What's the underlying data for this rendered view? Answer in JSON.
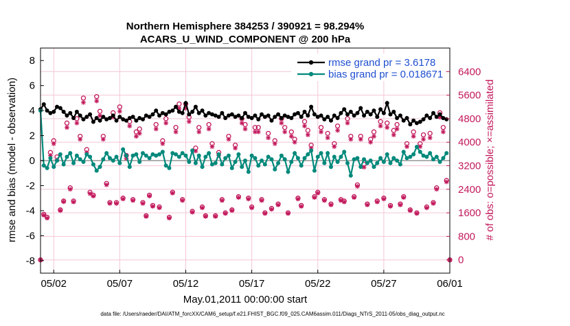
{
  "chart_data": {
    "type": "line",
    "title": [
      "Northern Hemisphere 384253 / 390921 = 98.294%",
      "ACARS_U_WIND_COMPONENT @ 200 hPa"
    ],
    "xlabel": "May.01,2011 00:00:00 start",
    "ylabel_left": "rmse and bias (model - observation)",
    "ylabel_right": "# of obs: o=possible; ×=assimilated",
    "footnote": "data file: /Users/raeder/DAI/ATM_forcXX/CAM6_setup/f.e21.FHIST_BGC.f09_025.CAM6assim.011/Diags_NTrS_2011-05/obs_diag_output.nc",
    "xlim": [
      0,
      31
    ],
    "ylim_left": [
      -9,
      9
    ],
    "ylim_right": [
      -450,
      7200
    ],
    "xticks": [
      {
        "v": 1,
        "label": "05/02"
      },
      {
        "v": 6,
        "label": "05/07"
      },
      {
        "v": 11,
        "label": "05/12"
      },
      {
        "v": 16,
        "label": "05/17"
      },
      {
        "v": 21,
        "label": "05/22"
      },
      {
        "v": 26,
        "label": "05/27"
      },
      {
        "v": 31,
        "label": "06/01"
      }
    ],
    "yticks_left": [
      -8,
      -6,
      -4,
      -2,
      0,
      2,
      4,
      6,
      8
    ],
    "yticks_right": [
      0,
      800,
      1600,
      2400,
      3200,
      4000,
      4800,
      5600,
      6400
    ],
    "grid": true,
    "zero_line": true,
    "legend_position": "top-right",
    "colors": {
      "rmse": "#000000",
      "bias": "#00897b",
      "obs": "#c2185b",
      "grid": "#f4c6d6",
      "zero": "#b0b0b0"
    },
    "series": [
      {
        "name": "rmse grand pr = 3.6178",
        "axis": "left",
        "x": [
          0.0,
          0.25,
          0.5,
          0.75,
          1.0,
          1.25,
          1.5,
          1.75,
          2.0,
          2.25,
          2.5,
          2.75,
          3.0,
          3.25,
          3.5,
          3.75,
          4.0,
          4.25,
          4.5,
          4.75,
          5.0,
          5.25,
          5.5,
          5.75,
          6.0,
          6.25,
          6.5,
          6.75,
          7.0,
          7.25,
          7.5,
          7.75,
          8.0,
          8.25,
          8.5,
          8.75,
          9.0,
          9.25,
          9.5,
          9.75,
          10.0,
          10.25,
          10.5,
          10.75,
          11.0,
          11.25,
          11.5,
          11.75,
          12.0,
          12.25,
          12.5,
          12.75,
          13.0,
          13.25,
          13.5,
          13.75,
          14.0,
          14.25,
          14.5,
          14.75,
          15.0,
          15.25,
          15.5,
          15.75,
          16.0,
          16.25,
          16.5,
          16.75,
          17.0,
          17.25,
          17.5,
          17.75,
          18.0,
          18.25,
          18.5,
          18.75,
          19.0,
          19.25,
          19.5,
          19.75,
          20.0,
          20.25,
          20.5,
          20.75,
          21.0,
          21.25,
          21.5,
          21.75,
          22.0,
          22.25,
          22.5,
          22.75,
          23.0,
          23.25,
          23.5,
          23.75,
          24.0,
          24.25,
          24.5,
          24.75,
          25.0,
          25.25,
          25.5,
          25.75,
          26.0,
          26.25,
          26.5,
          26.75,
          27.0,
          27.25,
          27.5,
          27.75,
          28.0,
          28.25,
          28.5,
          28.75,
          29.0,
          29.25,
          29.5,
          29.75,
          30.0,
          30.25,
          30.5,
          30.75
        ],
        "values": [
          4.1,
          4.5,
          4.0,
          3.8,
          3.9,
          4.3,
          4.2,
          3.9,
          3.6,
          3.8,
          3.4,
          3.9,
          3.6,
          3.3,
          3.5,
          3.7,
          3.1,
          3.4,
          3.2,
          3.5,
          3.3,
          3.4,
          3.6,
          3.2,
          3.5,
          3.3,
          3.2,
          3.4,
          3.5,
          3.2,
          3.4,
          3.3,
          3.6,
          3.5,
          3.7,
          4.0,
          3.6,
          3.8,
          3.7,
          3.9,
          4.0,
          4.3,
          3.9,
          3.8,
          4.6,
          3.7,
          3.9,
          4.3,
          3.8,
          4.0,
          3.6,
          3.8,
          3.7,
          3.6,
          3.5,
          3.8,
          3.4,
          3.6,
          3.7,
          3.5,
          3.6,
          3.4,
          3.8,
          3.5,
          3.4,
          3.6,
          3.3,
          3.7,
          3.5,
          3.6,
          3.2,
          3.5,
          3.7,
          3.4,
          3.6,
          3.5,
          3.4,
          3.7,
          3.8,
          3.5,
          3.9,
          3.6,
          4.3,
          3.7,
          3.5,
          3.6,
          3.3,
          3.5,
          3.2,
          3.6,
          3.4,
          3.8,
          4.1,
          3.7,
          3.9,
          3.6,
          3.8,
          4.2,
          3.6,
          3.9,
          3.7,
          4.0,
          3.5,
          4.1,
          3.8,
          4.6,
          3.7,
          3.9,
          3.4,
          3.6,
          3.2,
          3.4,
          2.9,
          3.2,
          3.0,
          3.1,
          3.3,
          3.6,
          3.4,
          3.8,
          3.5,
          3.7,
          3.4,
          3.3
        ]
      },
      {
        "name": "bias grand pr = 0.018671",
        "axis": "left",
        "x": [
          0.0,
          0.25,
          0.5,
          0.75,
          1.0,
          1.25,
          1.5,
          1.75,
          2.0,
          2.25,
          2.5,
          2.75,
          3.0,
          3.25,
          3.5,
          3.75,
          4.0,
          4.25,
          4.5,
          4.75,
          5.0,
          5.25,
          5.5,
          5.75,
          6.0,
          6.25,
          6.5,
          6.75,
          7.0,
          7.25,
          7.5,
          7.75,
          8.0,
          8.25,
          8.5,
          8.75,
          9.0,
          9.25,
          9.5,
          9.75,
          10.0,
          10.25,
          10.5,
          10.75,
          11.0,
          11.25,
          11.5,
          11.75,
          12.0,
          12.25,
          12.5,
          12.75,
          13.0,
          13.25,
          13.5,
          13.75,
          14.0,
          14.25,
          14.5,
          14.75,
          15.0,
          15.25,
          15.5,
          15.75,
          16.0,
          16.25,
          16.5,
          16.75,
          17.0,
          17.25,
          17.5,
          17.75,
          18.0,
          18.25,
          18.5,
          18.75,
          19.0,
          19.25,
          19.5,
          19.75,
          20.0,
          20.25,
          20.5,
          20.75,
          21.0,
          21.25,
          21.5,
          21.75,
          22.0,
          22.25,
          22.5,
          22.75,
          23.0,
          23.25,
          23.5,
          23.75,
          24.0,
          24.25,
          24.5,
          24.75,
          25.0,
          25.25,
          25.5,
          25.75,
          26.0,
          26.25,
          26.5,
          26.75,
          27.0,
          27.25,
          27.5,
          27.75,
          28.0,
          28.25,
          28.5,
          28.75,
          29.0,
          29.25,
          29.5,
          29.75,
          30.0,
          30.25,
          30.5,
          30.75
        ],
        "values": [
          4.0,
          -0.4,
          -0.6,
          0.2,
          -0.5,
          0.0,
          0.5,
          -0.3,
          0.3,
          0.6,
          -0.2,
          0.4,
          0.1,
          -0.1,
          0.5,
          0.3,
          -0.3,
          -0.8,
          -0.5,
          0.1,
          0.6,
          0.2,
          0.0,
          0.3,
          -0.2,
          0.9,
          0.4,
          -0.5,
          0.4,
          0.5,
          -0.1,
          0.6,
          0.4,
          0.2,
          0.5,
          0.4,
          0.5,
          0.7,
          -0.4,
          -0.6,
          0.6,
          0.5,
          0.3,
          0.6,
          0.4,
          -0.1,
          0.8,
          -0.2,
          0.4,
          -0.5,
          0.3,
          0.6,
          -0.3,
          -0.2,
          0.5,
          -0.3,
          0.2,
          0.4,
          -0.6,
          -0.1,
          0.5,
          -0.5,
          0.0,
          -0.9,
          0.4,
          0.2,
          -0.4,
          0.0,
          -0.3,
          0.3,
          0.1,
          -0.7,
          -0.2,
          0.4,
          0.1,
          -0.9,
          -0.1,
          0.6,
          0.2,
          -0.4,
          0.2,
          0.5,
          0.8,
          -0.8,
          0.3,
          0.6,
          -0.2,
          0.6,
          -0.5,
          0.3,
          -0.1,
          0.3,
          0.7,
          -0.2,
          -1.2,
          0.1,
          0.2,
          -0.5,
          0.1,
          -0.2,
          0.0,
          -0.5,
          -0.2,
          0.2,
          -0.1,
          0.5,
          -0.2,
          0.2,
          0.0,
          -0.3,
          0.7,
          0.2,
          0.3,
          0.5,
          1.1,
          0.7,
          0.4,
          0.3,
          0.6,
          0.1,
          0.3,
          -0.1,
          0.2,
          0.6
        ]
      },
      {
        "name": "possible",
        "axis": "right",
        "marker": "circle",
        "x": [
          0.0,
          0.25,
          0.5,
          0.75,
          1.0,
          1.25,
          1.5,
          1.75,
          2.0,
          2.25,
          2.5,
          2.75,
          3.0,
          3.25,
          3.5,
          3.75,
          4.0,
          4.25,
          4.5,
          4.75,
          5.0,
          5.25,
          5.5,
          5.75,
          6.0,
          6.25,
          6.5,
          6.75,
          7.0,
          7.25,
          7.5,
          7.75,
          8.0,
          8.25,
          8.5,
          8.75,
          9.0,
          9.25,
          9.5,
          9.75,
          10.0,
          10.25,
          10.5,
          10.75,
          11.0,
          11.25,
          11.5,
          11.75,
          12.0,
          12.25,
          12.5,
          12.75,
          13.0,
          13.25,
          13.5,
          13.75,
          14.0,
          14.25,
          14.5,
          14.75,
          15.0,
          15.25,
          15.5,
          15.75,
          16.0,
          16.25,
          16.5,
          16.75,
          17.0,
          17.25,
          17.5,
          17.75,
          18.0,
          18.25,
          18.5,
          18.75,
          19.0,
          19.25,
          19.5,
          19.75,
          20.0,
          20.25,
          20.5,
          20.75,
          21.0,
          21.25,
          21.5,
          21.75,
          22.0,
          22.25,
          22.5,
          22.75,
          23.0,
          23.25,
          23.5,
          23.75,
          24.0,
          24.25,
          24.5,
          24.75,
          25.0,
          25.25,
          25.5,
          25.75,
          26.0,
          26.25,
          26.5,
          26.75,
          27.0,
          27.25,
          27.5,
          27.75,
          28.0,
          28.25,
          28.5,
          28.75,
          29.0,
          29.25,
          29.5,
          29.75,
          30.0,
          30.25,
          30.5,
          30.75,
          31.0
        ],
        "values": [
          0,
          1550,
          1450,
          3650,
          4050,
          3500,
          1700,
          2000,
          4650,
          2450,
          2000,
          4800,
          4200,
          5500,
          3750,
          2300,
          2200,
          5550,
          5050,
          4200,
          2600,
          1950,
          5000,
          1950,
          5200,
          2100,
          3550,
          4700,
          2050,
          4350,
          4450,
          1950,
          1500,
          2200,
          1850,
          4600,
          1800,
          4050,
          4800,
          1450,
          2300,
          4500,
          5300,
          2050,
          5300,
          4850,
          1650,
          3800,
          4500,
          1800,
          1500,
          4600,
          3950,
          1500,
          3650,
          2050,
          1600,
          4200,
          1700,
          3900,
          2150,
          4800,
          4600,
          2100,
          1800,
          4500,
          4500,
          2050,
          1600,
          4300,
          1750,
          4050,
          1900,
          4800,
          4500,
          1600,
          4350,
          4100,
          2100,
          1850,
          4700,
          4400,
          3900,
          2150,
          2300,
          4500,
          2050,
          4300,
          1900,
          3950,
          4550,
          2050,
          2000,
          4800,
          4200,
          2150,
          2550,
          4200,
          3250,
          1900,
          4100,
          4350,
          2000,
          4700,
          2100,
          4650,
          1850,
          4400,
          4600,
          1900,
          2150,
          3950,
          1700,
          4350,
          1600,
          3950,
          4250,
          1800,
          4300,
          1950,
          2450,
          5000,
          4500,
          2700,
          0
        ]
      },
      {
        "name": "assimilated",
        "axis": "right",
        "marker": "asterisk",
        "x": [
          0.0,
          0.25,
          0.5,
          0.75,
          1.0,
          1.25,
          1.5,
          1.75,
          2.0,
          2.25,
          2.5,
          2.75,
          3.0,
          3.25,
          3.5,
          3.75,
          4.0,
          4.25,
          4.5,
          4.75,
          5.0,
          5.25,
          5.5,
          5.75,
          6.0,
          6.25,
          6.5,
          6.75,
          7.0,
          7.25,
          7.5,
          7.75,
          8.0,
          8.25,
          8.5,
          8.75,
          9.0,
          9.25,
          9.5,
          9.75,
          10.0,
          10.25,
          10.5,
          10.75,
          11.0,
          11.25,
          11.5,
          11.75,
          12.0,
          12.25,
          12.5,
          12.75,
          13.0,
          13.25,
          13.5,
          13.75,
          14.0,
          14.25,
          14.5,
          14.75,
          15.0,
          15.25,
          15.5,
          15.75,
          16.0,
          16.25,
          16.5,
          16.75,
          17.0,
          17.25,
          17.5,
          17.75,
          18.0,
          18.25,
          18.5,
          18.75,
          19.0,
          19.25,
          19.5,
          19.75,
          20.0,
          20.25,
          20.5,
          20.75,
          21.0,
          21.25,
          21.5,
          21.75,
          22.0,
          22.25,
          22.5,
          22.75,
          23.0,
          23.25,
          23.5,
          23.75,
          24.0,
          24.25,
          24.5,
          24.75,
          25.0,
          25.25,
          25.5,
          25.75,
          26.0,
          26.25,
          26.5,
          26.75,
          27.0,
          27.25,
          27.5,
          27.75,
          28.0,
          28.25,
          28.5,
          28.75,
          29.0,
          29.25,
          29.5,
          29.75,
          30.0,
          30.25,
          30.5,
          30.75,
          31.0
        ],
        "values": [
          0,
          1520,
          1420,
          3550,
          3950,
          3400,
          1680,
          1980,
          4500,
          2400,
          1970,
          4650,
          4100,
          5350,
          3650,
          2250,
          2170,
          5400,
          4900,
          4100,
          2550,
          1920,
          4850,
          1920,
          5050,
          2070,
          3450,
          4550,
          2020,
          4200,
          4300,
          1920,
          1480,
          2170,
          1820,
          4450,
          1770,
          3950,
          4650,
          1420,
          2270,
          4350,
          5150,
          2020,
          5150,
          4700,
          1620,
          3700,
          4350,
          1770,
          1480,
          4450,
          3850,
          1480,
          3550,
          2020,
          1580,
          4100,
          1680,
          3800,
          2120,
          4650,
          4450,
          2070,
          1770,
          4350,
          4350,
          2020,
          1580,
          4150,
          1720,
          3950,
          1870,
          4650,
          4350,
          1580,
          4200,
          4000,
          2070,
          1820,
          4550,
          4250,
          3800,
          2120,
          2270,
          4350,
          2020,
          4150,
          1870,
          3850,
          4400,
          2020,
          1970,
          4650,
          4100,
          2120,
          2500,
          4100,
          3150,
          1870,
          4000,
          4200,
          1970,
          4550,
          2070,
          4500,
          1820,
          4250,
          4450,
          1870,
          2120,
          3850,
          1680,
          4200,
          1580,
          3850,
          4100,
          1770,
          4150,
          1920,
          2400,
          4850,
          4350,
          2650,
          0
        ]
      }
    ]
  }
}
